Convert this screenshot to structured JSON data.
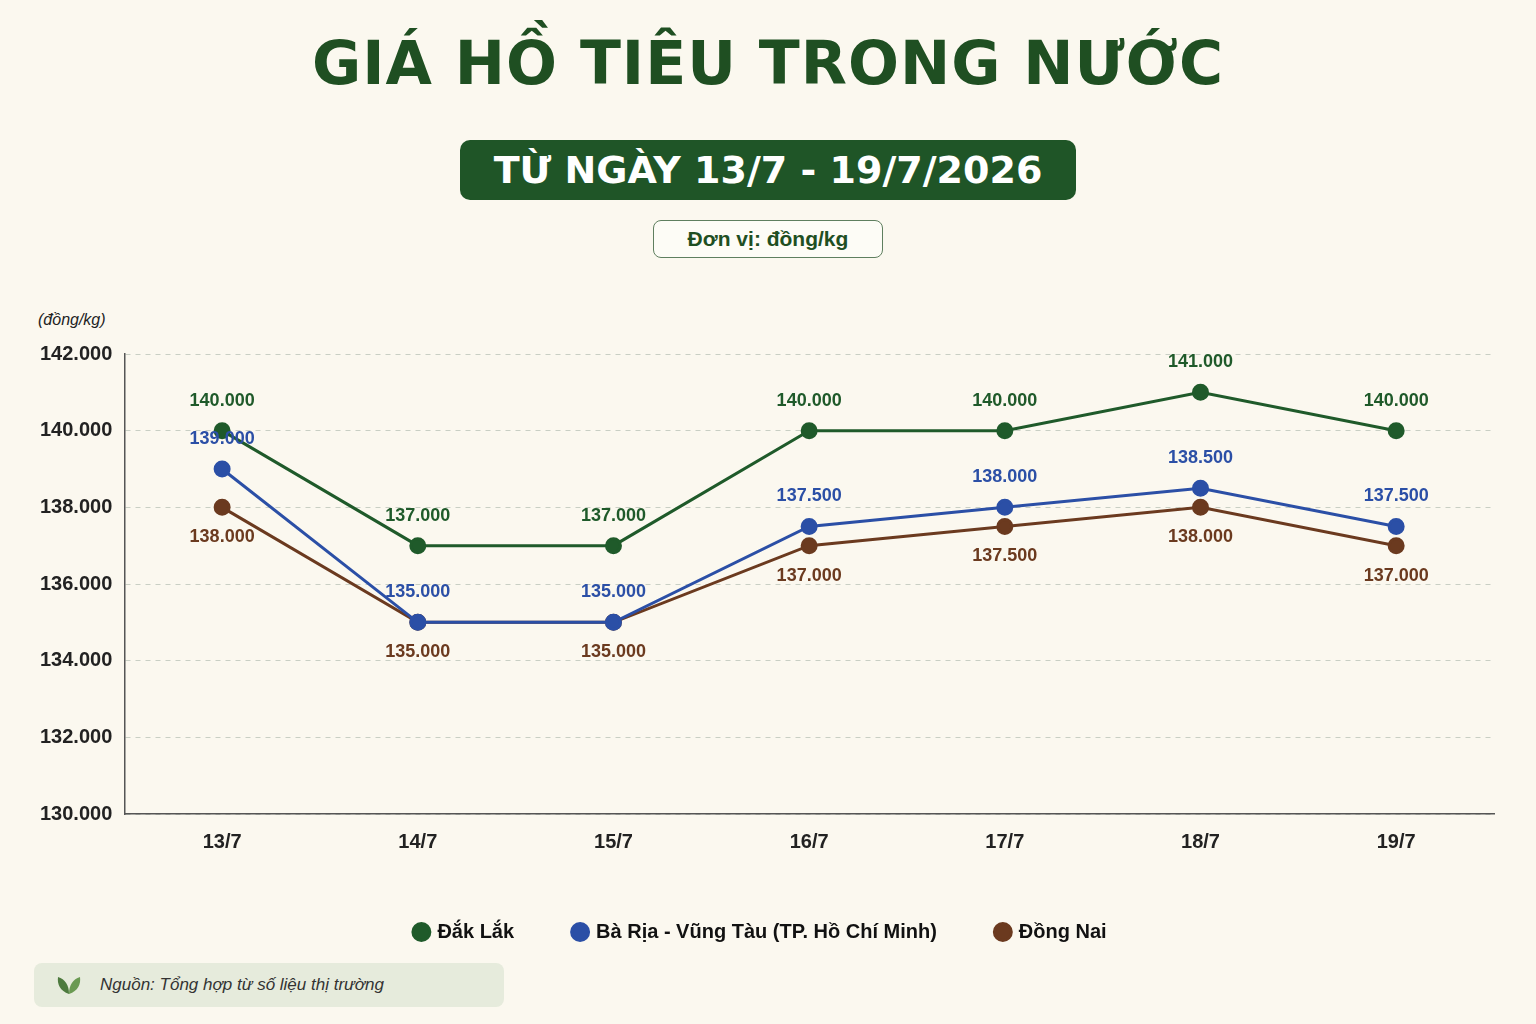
{
  "chart_data": {
    "type": "line",
    "title": "GIÁ HỒ TIÊU TRONG NƯỚC",
    "subtitle": "TỪ NGÀY 13/7 - 19/7/2026",
    "ylabel": "(đồng/kg)",
    "annotations": [
      "Đơn vị: đồng/kg",
      "Nguồn: Tổng hợp từ số liệu thị trường"
    ],
    "categories": [
      "13/7",
      "14/7",
      "15/7",
      "16/7",
      "17/7",
      "18/7",
      "19/7"
    ],
    "series": [
      {
        "name": "Đắk Lắk",
        "color": "#1f5a2a",
        "values": [
          140000,
          137000,
          137000,
          140000,
          140000,
          141000,
          140000
        ],
        "value_labels": [
          "140.000",
          "137.000",
          "137.000",
          "140.000",
          "140.000",
          "141.000",
          "140.000"
        ]
      },
      {
        "name": "Bà Rịa - Vũng Tàu (TP. Hồ Chí Minh)",
        "color": "#2b4fa6",
        "values": [
          139000,
          135000,
          135000,
          137500,
          138000,
          138500,
          137500
        ],
        "value_labels": [
          "139.000",
          "135.000",
          "135.000",
          "137.500",
          "138.000",
          "138.500",
          "137.500"
        ]
      },
      {
        "name": "Đồng Nai",
        "color": "#6b3a1f",
        "values": [
          138000,
          135000,
          135000,
          137000,
          137500,
          138000,
          137000
        ],
        "value_labels": [
          "138.000",
          "135.000",
          "135.000",
          "137.000",
          "137.500",
          "138.000",
          "137.000"
        ]
      }
    ],
    "ylim": [
      130000,
      142000
    ],
    "yticks": [
      {
        "value": 130000,
        "label": "130.000"
      },
      {
        "value": 132000,
        "label": "132.000"
      },
      {
        "value": 134000,
        "label": "134.000"
      },
      {
        "value": 136000,
        "label": "136.000"
      },
      {
        "value": 138000,
        "label": "138.000"
      },
      {
        "value": 140000,
        "label": "140.000"
      },
      {
        "value": 142000,
        "label": "142.000"
      }
    ],
    "grid": true,
    "legend": "bottom",
    "data_labels": true,
    "marker": "circle",
    "line_style": "solid"
  }
}
